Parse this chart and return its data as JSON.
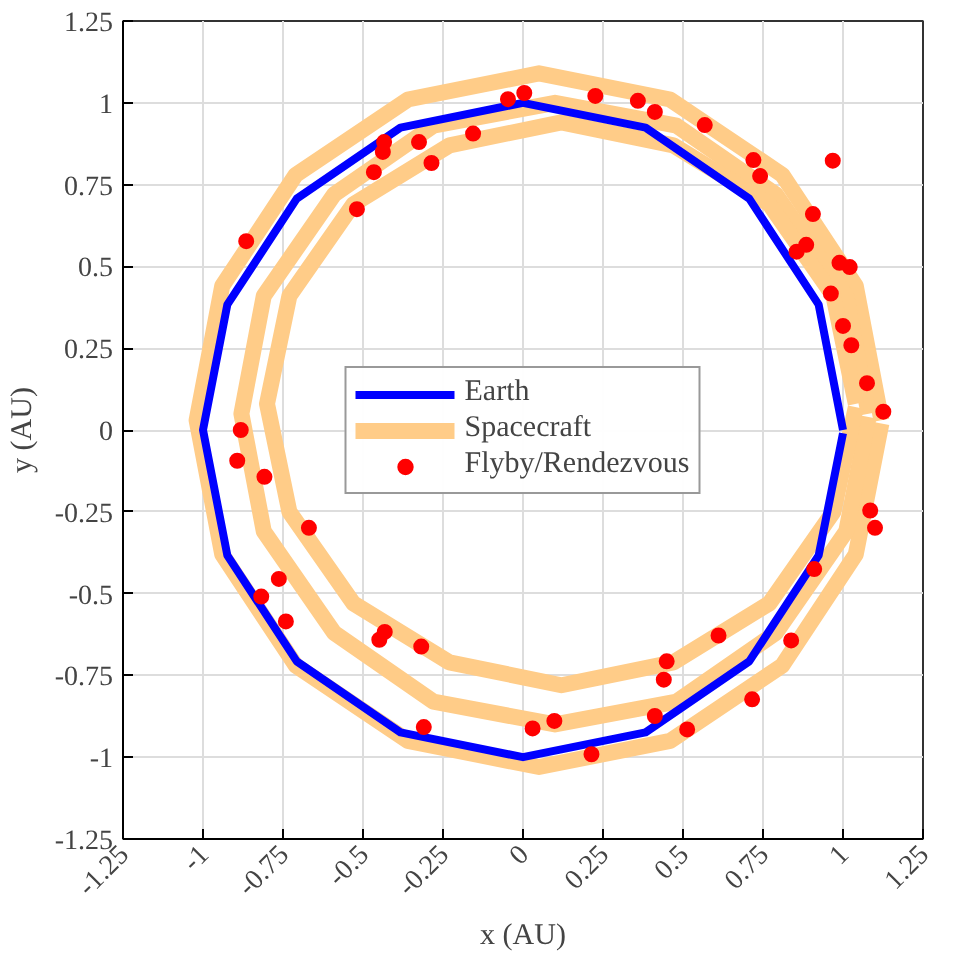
{
  "chart_data": {
    "type": "line",
    "xlabel": "x (AU)",
    "ylabel": "y (AU)",
    "xlim": [
      -1.25,
      1.25
    ],
    "ylim": [
      -1.25,
      1.25
    ],
    "xticks": [
      -1.25,
      -1,
      -0.75,
      -0.5,
      -0.25,
      0,
      0.25,
      0.5,
      0.75,
      1,
      1.25
    ],
    "yticks": [
      -1.25,
      -1,
      -0.75,
      -0.5,
      -0.25,
      0,
      0.25,
      0.5,
      0.75,
      1,
      1.25
    ],
    "grid": true,
    "legend": "center",
    "line_style": "solid",
    "series": [
      {
        "name": "Earth",
        "color": "#0000ff",
        "x": [
          1,
          0.924,
          0.707,
          0.383,
          0,
          -0.383,
          -0.707,
          -0.924,
          -1,
          -0.924,
          -0.707,
          -0.383,
          0,
          0.383,
          0.707,
          0.924,
          1
        ],
        "values": [
          0,
          0.383,
          0.707,
          0.924,
          1,
          0.924,
          0.707,
          0.383,
          0,
          -0.383,
          -0.707,
          -0.924,
          -1,
          -0.924,
          -0.707,
          -0.383,
          -0.01
        ]
      },
      {
        "name": "Spacecraft",
        "color": "#ffcc88",
        "x": [
          1.12,
          1.04,
          0.81,
          0.46,
          0.05,
          -0.36,
          -0.71,
          -0.94,
          -1.02,
          -0.94,
          -0.71,
          -0.36,
          0.05,
          0.46,
          0.81,
          1.04,
          1.12
        ],
        "values": [
          0.03,
          0.44,
          0.78,
          1.01,
          1.09,
          1.01,
          0.78,
          0.44,
          0.03,
          -0.38,
          -0.72,
          -0.95,
          -1.03,
          -0.95,
          -0.72,
          -0.38,
          0.02
        ]
      },
      {
        "color": "#ffcc88",
        "x": [
          1.08,
          1.01,
          0.79,
          0.48,
          0.1,
          -0.28,
          -0.59,
          -0.81,
          -0.88,
          -0.81,
          -0.59,
          -0.28,
          0.1,
          0.48,
          0.79,
          1.01,
          1.08
        ],
        "values": [
          0.05,
          0.41,
          0.72,
          0.93,
          1.0,
          0.93,
          0.72,
          0.41,
          0.05,
          -0.31,
          -0.62,
          -0.83,
          -0.9,
          -0.83,
          -0.62,
          -0.31,
          0.04
        ]
      },
      {
        "color": "#ffcc88",
        "x": [
          1.04,
          0.97,
          0.77,
          0.47,
          0.12,
          -0.23,
          -0.53,
          -0.73,
          -0.8,
          -0.73,
          -0.53,
          -0.23,
          0.12,
          0.47,
          0.77,
          0.97,
          1.04
        ],
        "values": [
          0.08,
          0.41,
          0.69,
          0.87,
          0.94,
          0.87,
          0.69,
          0.41,
          0.08,
          -0.25,
          -0.53,
          -0.71,
          -0.78,
          -0.71,
          -0.53,
          -0.25,
          0.07
        ]
      },
      {
        "name": "Flyby/Rendezvous",
        "type": "scatter",
        "marker": "circle",
        "color": "#ff0000",
        "x": [
          -0.865,
          -0.882,
          -0.519,
          -0.466,
          -0.438,
          -0.434,
          -0.325,
          -0.286,
          -0.156,
          -0.047,
          0.004,
          0.226,
          0.359,
          0.412,
          0.568,
          0.72,
          0.741,
          0.968,
          0.906,
          0.855,
          0.885,
          0.989,
          1.021,
          0.962,
          1.0,
          1.026,
          1.075,
          1.126,
          -0.893,
          -0.808,
          -0.669,
          -0.763,
          -0.818,
          -0.741,
          -0.449,
          -0.432,
          -0.318,
          -0.31,
          0.03,
          0.098,
          0.214,
          0.412,
          0.44,
          0.449,
          0.513,
          0.611,
          0.716,
          0.838,
          0.91,
          1.085,
          1.1
        ],
        "values": [
          0.577,
          0.0,
          0.675,
          0.788,
          0.85,
          0.88,
          0.88,
          0.816,
          0.906,
          1.011,
          1.03,
          1.021,
          1.006,
          0.972,
          0.932,
          0.825,
          0.776,
          0.823,
          0.66,
          0.545,
          0.566,
          0.511,
          0.498,
          0.417,
          0.318,
          0.259,
          0.143,
          0.056,
          -0.094,
          -0.143,
          -0.299,
          -0.455,
          -0.509,
          -0.585,
          -0.641,
          -0.617,
          -0.662,
          -0.908,
          -0.912,
          -0.889,
          -0.991,
          -0.874,
          -0.763,
          -0.707,
          -0.915,
          -0.628,
          -0.823,
          -0.643,
          -0.425,
          -0.246,
          -0.299
        ]
      }
    ]
  }
}
